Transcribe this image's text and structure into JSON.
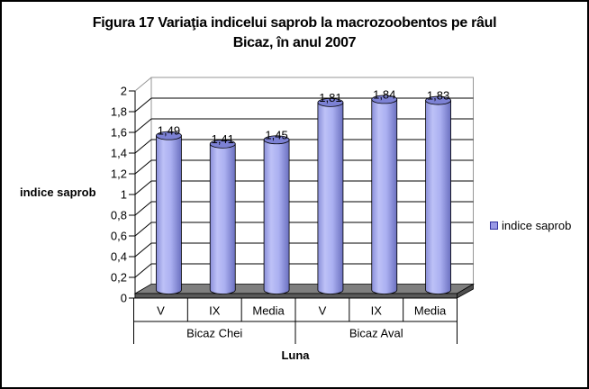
{
  "title": {
    "line1": "Figura 17 Variaţia indicelui saprob la macrozoobentos pe râul",
    "line2": "Bicaz, în anul 2007"
  },
  "y_axis_title": "indice saprob",
  "legend": {
    "label": "indice saprob",
    "marker_fill": "#9999e6",
    "marker_border": "#3333a0"
  },
  "colors": {
    "cylinder_edge": "#6b70c0",
    "cylinder_mid": "#8a8fd9",
    "cylinder_light": "#bdc1f7",
    "cylinder_top": "#7c81d4",
    "floor_top": "#7f7f7f",
    "floor_front": "#5a5a5a",
    "floor_side": "#4e4e4e",
    "gridline": "#000000",
    "wall_edge": "#969696",
    "axis_line": "#000000"
  },
  "chart_data": {
    "type": "bar",
    "shape": "cylinder-3d",
    "title": "Figura 17 Variaţia indicelui saprob la macrozoobentos pe râul Bicaz, în anul 2007",
    "xlabel": "Luna",
    "ylabel": "indice saprob",
    "ylim": [
      0,
      2
    ],
    "ytick_step": 0.2,
    "ytick_labels": [
      "0",
      "0,2",
      "0,4",
      "0,6",
      "0,8",
      "1",
      "1,2",
      "1,4",
      "1,6",
      "1,8",
      "2"
    ],
    "grid": true,
    "legend_position": "right",
    "categories": [
      "V",
      "IX",
      "Media",
      "V",
      "IX",
      "Media"
    ],
    "category_groups": [
      {
        "label": "Bicaz Chei",
        "span": 3
      },
      {
        "label": "Bicaz Aval",
        "span": 3
      }
    ],
    "series": [
      {
        "name": "indice saprob",
        "color": "#9999e6",
        "values": [
          1.49,
          1.41,
          1.45,
          1.81,
          1.84,
          1.83
        ],
        "value_labels": [
          "1,49",
          "1,41",
          "1,45",
          "1,81",
          "1,84",
          "1,83"
        ]
      }
    ]
  }
}
